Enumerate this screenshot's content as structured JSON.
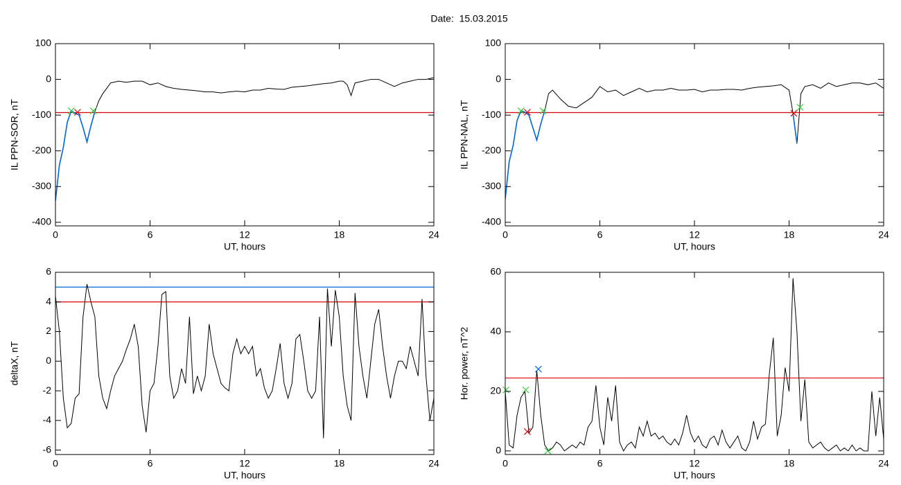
{
  "title": "Date:  15.03.2015",
  "chart_data": [
    {
      "type": "line",
      "ylabel": "IL PPN-SOR, nT",
      "xlabel": "UT, hours",
      "xlim": [
        0,
        24
      ],
      "xticks": [
        0,
        6,
        12,
        18,
        24
      ],
      "ylim": [
        -410,
        100
      ],
      "yticks": [
        100,
        0,
        -100,
        -200,
        -300,
        -400
      ],
      "x": [
        0,
        0.25,
        0.5,
        0.75,
        1,
        1.25,
        1.5,
        1.75,
        2,
        2.25,
        2.5,
        2.75,
        3,
        3.5,
        4,
        4.5,
        5,
        5.5,
        6,
        6.5,
        7,
        7.5,
        8,
        8.5,
        9,
        9.5,
        10,
        10.5,
        11,
        11.5,
        12,
        12.5,
        13,
        13.5,
        14,
        14.5,
        15,
        15.5,
        16,
        16.5,
        17,
        17.5,
        18,
        18.25,
        18.5,
        18.75,
        19,
        19.5,
        20,
        20.5,
        21,
        21.5,
        22,
        22.5,
        23,
        23.5,
        24
      ],
      "series": [
        {
          "color": "#000000",
          "values": [
            -340,
            -240,
            -190,
            -120,
            -88,
            -95,
            -100,
            -135,
            -175,
            -130,
            -90,
            -60,
            -40,
            -10,
            -5,
            -8,
            -5,
            -5,
            -15,
            -10,
            -20,
            -25,
            -28,
            -30,
            -32,
            -35,
            -35,
            -38,
            -35,
            -33,
            -35,
            -30,
            -30,
            -25,
            -27,
            -28,
            -22,
            -20,
            -18,
            -15,
            -12,
            -10,
            -5,
            -5,
            -15,
            -45,
            -10,
            -5,
            0,
            0,
            -10,
            -20,
            -10,
            -5,
            0,
            0,
            5
          ]
        },
        {
          "color": "#0066dd",
          "values": [
            -340,
            -240,
            -190,
            -120,
            -88,
            -95,
            -100,
            -135,
            -175,
            -130,
            -90,
            null,
            null,
            null,
            null,
            null,
            null,
            null,
            null,
            null,
            null,
            null,
            null,
            null,
            null,
            null,
            null,
            null,
            null,
            null,
            null,
            null,
            null,
            null,
            null,
            null,
            null,
            null,
            null,
            null,
            null,
            null,
            null,
            null,
            null,
            null,
            null,
            null,
            null,
            null,
            null,
            null,
            null,
            null,
            null,
            null,
            null
          ]
        }
      ],
      "hlines": [
        {
          "value": -93,
          "color": "#dd0000"
        }
      ],
      "markers": [
        {
          "x": 1.0,
          "y": -88,
          "color": "#33cc33"
        },
        {
          "x": 2.4,
          "y": -88,
          "color": "#33cc33"
        },
        {
          "x": 1.4,
          "y": -92,
          "color": "#dd0000"
        }
      ]
    },
    {
      "type": "line",
      "ylabel": "IL PPN-NAL, nT",
      "xlabel": "UT, hours",
      "xlim": [
        0,
        24
      ],
      "xticks": [
        0,
        6,
        12,
        18,
        24
      ],
      "ylim": [
        -410,
        100
      ],
      "yticks": [
        100,
        0,
        -100,
        -200,
        -300,
        -400
      ],
      "x": [
        0,
        0.25,
        0.5,
        0.75,
        1,
        1.25,
        1.5,
        1.75,
        2,
        2.25,
        2.5,
        2.75,
        3,
        3.5,
        4,
        4.5,
        5,
        5.5,
        6,
        6.5,
        7,
        7.5,
        8,
        8.5,
        9,
        9.5,
        10,
        10.5,
        11,
        11.5,
        12,
        12.5,
        13,
        13.5,
        14,
        14.5,
        15,
        15.5,
        16,
        16.5,
        17,
        17.5,
        18,
        18.25,
        18.5,
        18.75,
        19,
        19.5,
        20,
        20.5,
        21,
        21.5,
        22,
        22.5,
        23,
        23.5,
        24
      ],
      "series": [
        {
          "color": "#000000",
          "values": [
            -335,
            -230,
            -185,
            -115,
            -88,
            -92,
            -100,
            -135,
            -170,
            -125,
            -88,
            -40,
            -30,
            -55,
            -75,
            -80,
            -65,
            -50,
            -20,
            -35,
            -30,
            -45,
            -35,
            -25,
            -35,
            -30,
            -30,
            -25,
            -30,
            -30,
            -28,
            -35,
            -30,
            -30,
            -28,
            -28,
            -30,
            -25,
            -22,
            -20,
            -18,
            -15,
            -30,
            -95,
            -180,
            -40,
            -20,
            -15,
            -25,
            -10,
            -20,
            -15,
            -10,
            -10,
            -15,
            -10,
            -25
          ]
        },
        {
          "color": "#0066dd",
          "values": [
            -335,
            -230,
            -185,
            -115,
            -88,
            -92,
            -100,
            -135,
            -170,
            -125,
            -88,
            null,
            null,
            null,
            null,
            null,
            null,
            null,
            null,
            null,
            null,
            null,
            null,
            null,
            null,
            null,
            null,
            null,
            null,
            null,
            null,
            null,
            null,
            null,
            null,
            null,
            null,
            null,
            null,
            null,
            null,
            null,
            null,
            -95,
            -180,
            null,
            null,
            null,
            null,
            null,
            null,
            null,
            null,
            null,
            null,
            null,
            null
          ]
        }
      ],
      "hlines": [
        {
          "value": -93,
          "color": "#dd0000"
        }
      ],
      "markers": [
        {
          "x": 1.0,
          "y": -88,
          "color": "#33cc33"
        },
        {
          "x": 2.4,
          "y": -88,
          "color": "#33cc33"
        },
        {
          "x": 18.7,
          "y": -78,
          "color": "#33cc33"
        },
        {
          "x": 1.4,
          "y": -92,
          "color": "#dd0000"
        },
        {
          "x": 18.3,
          "y": -95,
          "color": "#dd0000"
        }
      ]
    },
    {
      "type": "line",
      "ylabel": "deltaX, nT",
      "xlabel": "UT, hours",
      "xlim": [
        0,
        24
      ],
      "xticks": [
        0,
        6,
        12,
        18,
        24
      ],
      "ylim": [
        -6.3,
        6
      ],
      "yticks": [
        6,
        4,
        2,
        0,
        -2,
        -4,
        -6
      ],
      "x": [
        0,
        0.25,
        0.5,
        0.75,
        1,
        1.25,
        1.5,
        1.75,
        2,
        2.25,
        2.5,
        2.75,
        3,
        3.25,
        3.5,
        3.75,
        4,
        4.25,
        4.5,
        4.75,
        5,
        5.25,
        5.5,
        5.75,
        6,
        6.25,
        6.5,
        6.75,
        7,
        7.25,
        7.5,
        7.75,
        8,
        8.25,
        8.5,
        8.75,
        9,
        9.25,
        9.5,
        9.75,
        10,
        10.25,
        10.5,
        10.75,
        11,
        11.25,
        11.5,
        11.75,
        12,
        12.25,
        12.5,
        12.75,
        13,
        13.25,
        13.5,
        13.75,
        14,
        14.25,
        14.5,
        14.75,
        15,
        15.25,
        15.5,
        15.75,
        16,
        16.25,
        16.5,
        16.75,
        17,
        17.25,
        17.5,
        17.75,
        18,
        18.25,
        18.5,
        18.75,
        19,
        19.25,
        19.5,
        19.75,
        20,
        20.25,
        20.5,
        20.75,
        21,
        21.25,
        21.5,
        21.75,
        22,
        22.25,
        22.5,
        22.75,
        23,
        23.25,
        23.5,
        23.75,
        24
      ],
      "series": [
        {
          "color": "#000000",
          "values": [
            4.4,
            2,
            -2.5,
            -4.5,
            -4.2,
            -2.5,
            -2.2,
            3,
            5.2,
            4,
            3,
            -1,
            -2.5,
            -3.2,
            -2,
            -1,
            -0.5,
            0,
            0.8,
            1.5,
            2.5,
            1,
            -3,
            -4.8,
            -2,
            -1.5,
            1,
            4.5,
            4.7,
            -1,
            -2.5,
            -2,
            -0.5,
            -1.5,
            3,
            -2.2,
            -1,
            -2,
            -1,
            2.5,
            0.5,
            -0.5,
            -1.5,
            -1.8,
            -2,
            0.5,
            1.5,
            0.5,
            1,
            0.5,
            1,
            -1,
            -0.5,
            -1.8,
            -2.5,
            -2,
            -0.5,
            1.2,
            -1.5,
            -2.5,
            -1.5,
            1.5,
            1.8,
            0,
            -2,
            -2.5,
            -2,
            3,
            -5.2,
            4.9,
            1,
            4.8,
            3,
            -1,
            -3,
            -4,
            4.6,
            1,
            -1,
            -2.5,
            0,
            2.5,
            3.5,
            1,
            -1,
            -2.5,
            -1,
            0,
            0,
            -0.5,
            1,
            0,
            -1,
            4.2,
            -1,
            -4,
            -2.5
          ]
        }
      ],
      "hlines": [
        {
          "value": 5.0,
          "color": "#0066dd"
        },
        {
          "value": 4.0,
          "color": "#dd0000"
        }
      ],
      "markers": []
    },
    {
      "type": "line",
      "ylabel": "Hor. power, nT^2",
      "xlabel": "UT, hours",
      "xlim": [
        0,
        24
      ],
      "xticks": [
        0,
        6,
        12,
        18,
        24
      ],
      "ylim": [
        -1.2,
        60
      ],
      "yticks": [
        0,
        20,
        40,
        60
      ],
      "x": [
        0,
        0.25,
        0.5,
        0.75,
        1,
        1.25,
        1.5,
        1.75,
        2,
        2.25,
        2.5,
        2.75,
        3,
        3.25,
        3.5,
        3.75,
        4,
        4.25,
        4.5,
        4.75,
        5,
        5.25,
        5.5,
        5.75,
        6,
        6.25,
        6.5,
        6.75,
        7,
        7.25,
        7.5,
        7.75,
        8,
        8.25,
        8.5,
        8.75,
        9,
        9.25,
        9.5,
        9.75,
        10,
        10.25,
        10.5,
        10.75,
        11,
        11.25,
        11.5,
        11.75,
        12,
        12.25,
        12.5,
        12.75,
        13,
        13.25,
        13.5,
        13.75,
        14,
        14.25,
        14.5,
        14.75,
        15,
        15.25,
        15.5,
        15.75,
        16,
        16.25,
        16.5,
        16.75,
        17,
        17.25,
        17.5,
        17.75,
        18,
        18.25,
        18.5,
        18.75,
        19,
        19.25,
        19.5,
        19.75,
        20,
        20.25,
        20.5,
        20.75,
        21,
        21.25,
        21.5,
        21.75,
        22,
        22.25,
        22.5,
        22.75,
        23,
        23.25,
        23.5,
        23.75,
        24
      ],
      "series": [
        {
          "color": "#000000",
          "values": [
            20,
            2,
            1,
            12,
            18,
            20,
            6,
            8,
            27,
            12,
            2,
            0,
            1,
            3,
            2,
            0,
            1,
            2,
            1,
            3,
            2,
            8,
            10,
            22,
            8,
            2,
            18,
            10,
            22,
            3,
            0,
            2,
            3,
            1,
            8,
            5,
            10,
            5,
            6,
            4,
            5,
            3,
            2,
            4,
            2,
            6,
            12,
            6,
            3,
            5,
            2,
            1,
            4,
            5,
            2,
            7,
            3,
            1,
            3,
            5,
            1,
            0,
            3,
            10,
            4,
            8,
            9,
            26,
            38,
            5,
            12,
            28,
            20,
            58,
            40,
            10,
            24,
            3,
            1,
            2,
            3,
            1,
            0,
            1,
            2,
            0,
            1,
            0,
            2,
            0,
            1,
            0,
            0,
            20,
            5,
            18,
            4
          ]
        }
      ],
      "hlines": [
        {
          "value": 24.5,
          "color": "#dd0000"
        }
      ],
      "markers": [
        {
          "x": 0.05,
          "y": 20.5,
          "color": "#33cc33"
        },
        {
          "x": 1.3,
          "y": 20.5,
          "color": "#33cc33"
        },
        {
          "x": 2.7,
          "y": 0,
          "color": "#33cc33"
        },
        {
          "x": 2.1,
          "y": 27.5,
          "color": "#0066dd"
        },
        {
          "x": 1.4,
          "y": 6.5,
          "color": "#dd0000"
        }
      ]
    }
  ]
}
